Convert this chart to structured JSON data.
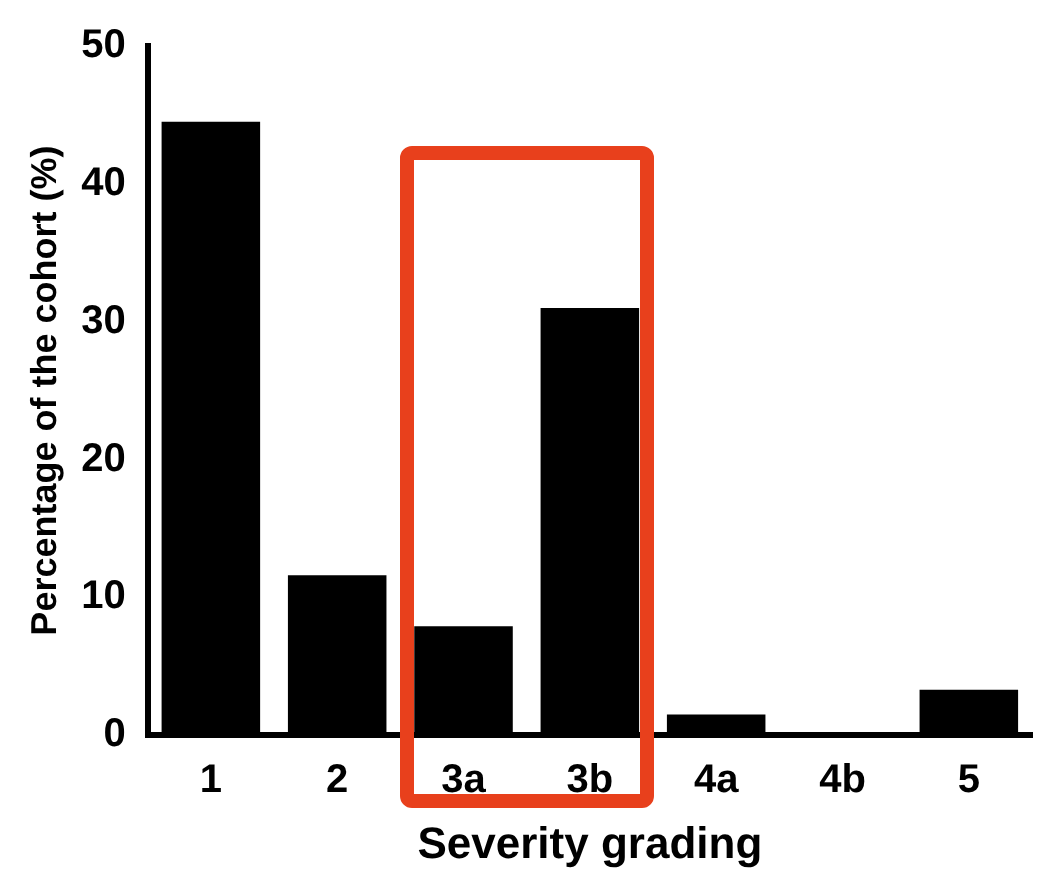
{
  "chart_data": {
    "type": "bar",
    "xlabel": "Severity grading",
    "ylabel": "Percentage of the cohort (%)",
    "categories": [
      "1",
      "2",
      "3a",
      "3b",
      "4a",
      "4b",
      "5"
    ],
    "values": [
      44.5,
      11.6,
      7.9,
      31.0,
      1.5,
      0,
      3.3
    ],
    "color": "#000000",
    "ylim": [
      0,
      50
    ],
    "yticks": [
      0,
      10,
      20,
      30,
      40,
      50
    ],
    "grid": false,
    "legend": false
  }
}
